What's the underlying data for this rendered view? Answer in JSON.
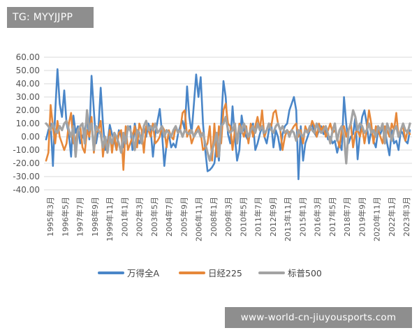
{
  "watermarks": {
    "top_left": "TG: MYYJJPP",
    "bottom_right": "www-world-cn-jiuyousports.com"
  },
  "chart_data": {
    "type": "line",
    "title": "",
    "xlabel": "",
    "ylabel": "",
    "ylim": [
      -40,
      60
    ],
    "yticks": [
      60,
      50,
      40,
      30,
      20,
      10,
      0,
      -10,
      -20,
      -30,
      -40
    ],
    "ytick_labels": [
      "60.00",
      "50.00",
      "40.00",
      "30.00",
      "20.00",
      "10.00",
      "0.00",
      "-10.00",
      "-20.00",
      "-30.00",
      "-40.00"
    ],
    "grid": true,
    "legend_position": "bottom",
    "x_labels": [
      "1995年3月",
      "1996年5月",
      "1997年7月",
      "1998年9月",
      "1999年11月",
      "2001年1月",
      "2002年3月",
      "2003年5月",
      "2004年7月",
      "2005年9月",
      "2006年11月",
      "2008年1月",
      "2009年3月",
      "2010年5月",
      "2011年7月",
      "2012年9月",
      "2013年11月",
      "2015年1月",
      "2016年3月",
      "2017年5月",
      "2018年7月",
      "2019年9月",
      "2020年11月",
      "2022年1月",
      "2023年3月"
    ],
    "series": [
      {
        "name": "万得全A",
        "color": "#4a86c8",
        "values": [
          -2,
          5,
          10,
          -22,
          18,
          51,
          25,
          15,
          35,
          10,
          2,
          -15,
          16,
          3,
          8,
          -5,
          0,
          5,
          15,
          -2,
          46,
          20,
          -5,
          5,
          37,
          10,
          -10,
          -5,
          9,
          2,
          -3,
          -10,
          5,
          0,
          -8,
          1,
          5,
          8,
          -10,
          10,
          0,
          -5,
          1,
          7,
          0,
          10,
          5,
          -15,
          2,
          12,
          21,
          2,
          -22,
          -5,
          2,
          -8,
          -5,
          -8,
          2,
          8,
          12,
          5,
          38,
          15,
          3,
          25,
          47,
          30,
          45,
          10,
          -10,
          -26,
          -25,
          -23,
          -20,
          -5,
          -18,
          10,
          42,
          30,
          2,
          -5,
          23,
          0,
          -18,
          -10,
          16,
          5,
          0,
          -3,
          5,
          10,
          -10,
          -5,
          2,
          8,
          0,
          -5,
          5,
          10,
          -8,
          5,
          0,
          -10,
          2,
          8,
          10,
          20,
          25,
          30,
          20,
          -32,
          8,
          -18,
          -5,
          0,
          5,
          10,
          3,
          0,
          5,
          8,
          2,
          5,
          -2,
          0,
          -5,
          -3,
          -12,
          -5,
          -10,
          30,
          10,
          -5,
          0,
          2,
          15,
          -17,
          2,
          15,
          20,
          10,
          -5,
          5,
          -3,
          -8,
          5,
          2,
          7,
          5,
          -5,
          -14,
          5,
          -5,
          -3,
          -10,
          5,
          2,
          -3,
          -5,
          5
        ]
      },
      {
        "name": "日经225",
        "color": "#e6883a",
        "values": [
          -18,
          -12,
          24,
          8,
          -5,
          12,
          0,
          -5,
          -10,
          -5,
          10,
          18,
          -5,
          -3,
          5,
          8,
          -8,
          -12,
          5,
          0,
          15,
          -12,
          3,
          5,
          12,
          -15,
          0,
          -8,
          5,
          -12,
          2,
          -10,
          3,
          5,
          -25,
          8,
          -10,
          -5,
          0,
          8,
          -8,
          10,
          5,
          -12,
          8,
          5,
          0,
          10,
          -5,
          -3,
          0,
          8,
          5,
          -8,
          5,
          0,
          -2,
          8,
          3,
          5,
          18,
          20,
          0,
          5,
          -5,
          0,
          5,
          8,
          3,
          -10,
          -8,
          -5,
          8,
          -18,
          10,
          -15,
          8,
          -5,
          20,
          25,
          10,
          8,
          -10,
          5,
          -3,
          10,
          5,
          0,
          8,
          -5,
          10,
          0,
          8,
          15,
          5,
          20,
          0,
          5,
          10,
          8,
          18,
          20,
          10,
          5,
          -10,
          0,
          5,
          3,
          5,
          8,
          10,
          0,
          5,
          -5,
          8,
          3,
          5,
          12,
          8,
          0,
          10,
          5,
          8,
          0,
          5,
          10,
          3,
          5,
          0,
          -8,
          5,
          8,
          0,
          5,
          10,
          -8,
          3,
          5,
          0,
          8,
          -5,
          5,
          20,
          10,
          -5,
          8,
          5,
          0,
          -5,
          8,
          5,
          0,
          10,
          5,
          18,
          0,
          5,
          8,
          -3,
          5,
          2
        ]
      },
      {
        "name": "标普500",
        "color": "#a3a3a3",
        "values": [
          10,
          8,
          5,
          10,
          5,
          3,
          8,
          5,
          10,
          12,
          5,
          0,
          8,
          -15,
          5,
          8,
          10,
          -5,
          20,
          5,
          10,
          -10,
          8,
          5,
          2,
          -8,
          0,
          -12,
          0,
          -5,
          3,
          0,
          -5,
          -12,
          3,
          -5,
          8,
          5,
          0,
          -10,
          5,
          3,
          -5,
          8,
          12,
          5,
          8,
          5,
          10,
          3,
          5,
          8,
          0,
          5,
          3,
          0,
          5,
          8,
          3,
          5,
          0,
          5,
          3,
          2,
          5,
          0,
          3,
          5,
          0,
          3,
          -5,
          -12,
          -18,
          -10,
          -5,
          3,
          -15,
          8,
          10,
          15,
          5,
          3,
          5,
          10,
          -5,
          8,
          3,
          10,
          5,
          0,
          5,
          8,
          3,
          10,
          5,
          8,
          3,
          5,
          10,
          5,
          3,
          8,
          10,
          5,
          8,
          3,
          5,
          0,
          5,
          3,
          -3,
          5,
          2,
          0,
          5,
          3,
          8,
          5,
          3,
          10,
          5,
          3,
          5,
          8,
          2,
          -5,
          5,
          10,
          -3,
          5,
          8,
          0,
          -20,
          5,
          10,
          20,
          15,
          5,
          10,
          8,
          3,
          5,
          10,
          3,
          5,
          0,
          8,
          5,
          10,
          -5,
          10,
          5,
          -3,
          5,
          8,
          0,
          5,
          10,
          5,
          3,
          10
        ]
      }
    ]
  }
}
